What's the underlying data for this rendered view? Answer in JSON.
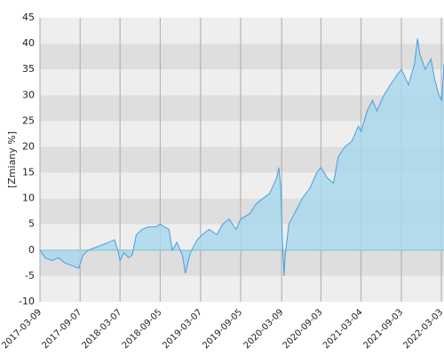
{
  "chart_data": {
    "type": "area",
    "y_label": "[Zmiany %]",
    "x": [
      "2017-03-09",
      "2017-04-01",
      "2017-05-01",
      "2017-06-01",
      "2017-07-01",
      "2017-08-01",
      "2017-09-01",
      "2017-09-20",
      "2017-10-15",
      "2017-11-15",
      "2017-12-15",
      "2018-01-15",
      "2018-02-10",
      "2018-02-25",
      "2018-03-07",
      "2018-03-25",
      "2018-04-15",
      "2018-05-01",
      "2018-05-20",
      "2018-06-15",
      "2018-07-15",
      "2018-08-15",
      "2018-09-05",
      "2018-09-25",
      "2018-10-15",
      "2018-10-30",
      "2018-11-20",
      "2018-12-15",
      "2018-12-28",
      "2019-01-20",
      "2019-02-20",
      "2019-03-15",
      "2019-04-15",
      "2019-05-20",
      "2019-06-15",
      "2019-07-15",
      "2019-08-15",
      "2019-09-05",
      "2019-10-15",
      "2019-11-15",
      "2019-12-15",
      "2020-01-15",
      "2020-02-15",
      "2020-02-25",
      "2020-03-05",
      "2020-03-12",
      "2020-03-20",
      "2020-03-25",
      "2020-04-10",
      "2020-05-05",
      "2020-06-10",
      "2020-07-15",
      "2020-08-15",
      "2020-09-03",
      "2020-10-01",
      "2020-10-30",
      "2020-11-20",
      "2020-12-20",
      "2021-01-20",
      "2021-02-20",
      "2021-03-04",
      "2021-04-01",
      "2021-04-25",
      "2021-05-15",
      "2021-06-15",
      "2021-07-15",
      "2021-08-15",
      "2021-09-03",
      "2021-10-05",
      "2021-11-01",
      "2021-11-15",
      "2021-11-25",
      "2021-12-20",
      "2022-01-15",
      "2022-02-01",
      "2022-02-20",
      "2022-03-05",
      "2022-03-15"
    ],
    "series": [
      {
        "name": "Zmiany",
        "color": "#4a9de0",
        "fill": "#a9d8ec",
        "values": [
          0,
          -1.5,
          -2,
          -1.5,
          -2.5,
          -3,
          -3.5,
          -1,
          0,
          0.5,
          1,
          1.5,
          2,
          0,
          -2,
          -0.5,
          -1.5,
          -1,
          3,
          4,
          4.5,
          4.5,
          5,
          4.5,
          4,
          0,
          1.5,
          -1,
          -4.5,
          -0.5,
          2,
          3,
          4,
          3,
          5,
          6,
          4,
          6,
          7,
          9,
          10,
          11,
          14,
          16,
          12,
          2,
          -5,
          -1,
          5,
          7,
          10,
          12,
          15,
          16,
          14,
          13,
          18,
          20,
          21,
          24,
          23,
          27,
          29,
          27,
          30,
          32,
          34,
          35,
          32,
          36,
          41,
          38,
          35,
          37,
          33,
          30,
          29,
          36
        ]
      }
    ],
    "xlim": [
      "2017-03-09",
      "2022-03-15"
    ],
    "xticks": [
      "2017-03-09",
      "2017-09-07",
      "2018-03-07",
      "2018-09-05",
      "2019-03-07",
      "2019-09-05",
      "2020-03-09",
      "2020-09-03",
      "2021-03-04",
      "2021-09-03",
      "2022-03-03"
    ],
    "ylim": [
      -10,
      45
    ],
    "yticks": [
      -10,
      -5,
      0,
      5,
      10,
      15,
      20,
      25,
      30,
      35,
      40,
      45
    ],
    "grid": true
  }
}
